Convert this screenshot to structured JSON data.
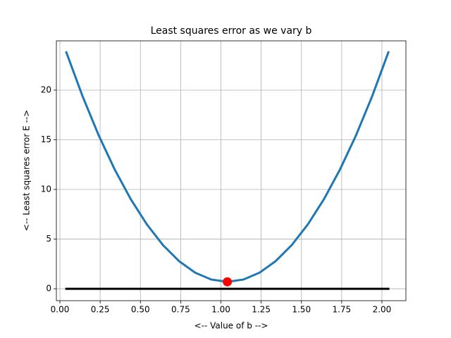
{
  "chart_data": {
    "type": "line",
    "title": "Least squares error as we vary b",
    "xlabel": "<-- Value of b -->",
    "ylabel": "<-- Least squares error E -->",
    "xlim": [
      -0.022,
      2.149
    ],
    "ylim": [
      -1.2,
      24.96
    ],
    "xticks": [
      {
        "value": 0,
        "label": "0.00"
      },
      {
        "value": 0.25,
        "label": "0.25"
      },
      {
        "value": 0.5,
        "label": "0.50"
      },
      {
        "value": 0.75,
        "label": "0.75"
      },
      {
        "value": 1,
        "label": "1.00"
      },
      {
        "value": 1.25,
        "label": "1.25"
      },
      {
        "value": 1.5,
        "label": "1.50"
      },
      {
        "value": 1.75,
        "label": "1.75"
      },
      {
        "value": 2,
        "label": "2.00"
      }
    ],
    "yticks": [
      0,
      5,
      10,
      15,
      20
    ],
    "grid": true,
    "series": [
      {
        "color": "#1f77b4",
        "width": 3,
        "x": [
          0.04,
          0.14,
          0.24,
          0.34,
          0.44,
          0.54,
          0.64,
          0.74,
          0.84,
          0.94,
          1.04,
          1.14,
          1.24,
          1.34,
          1.44,
          1.54,
          1.64,
          1.74,
          1.84,
          1.94,
          2.04
        ],
        "values": [
          23.8,
          19.41,
          15.48,
          12.02,
          9.02,
          6.48,
          4.4,
          2.78,
          1.62,
          0.93,
          0.7,
          0.93,
          1.62,
          2.78,
          4.4,
          6.48,
          9.02,
          12.02,
          15.48,
          19.41,
          23.8
        ]
      },
      {
        "color": "#000000",
        "width": 3,
        "x": [
          0.04,
          2.04
        ],
        "values": [
          0,
          0
        ]
      },
      {
        "color": "#ff0000",
        "marker": true,
        "x": [
          1.04
        ],
        "values": [
          0.7
        ]
      }
    ]
  }
}
